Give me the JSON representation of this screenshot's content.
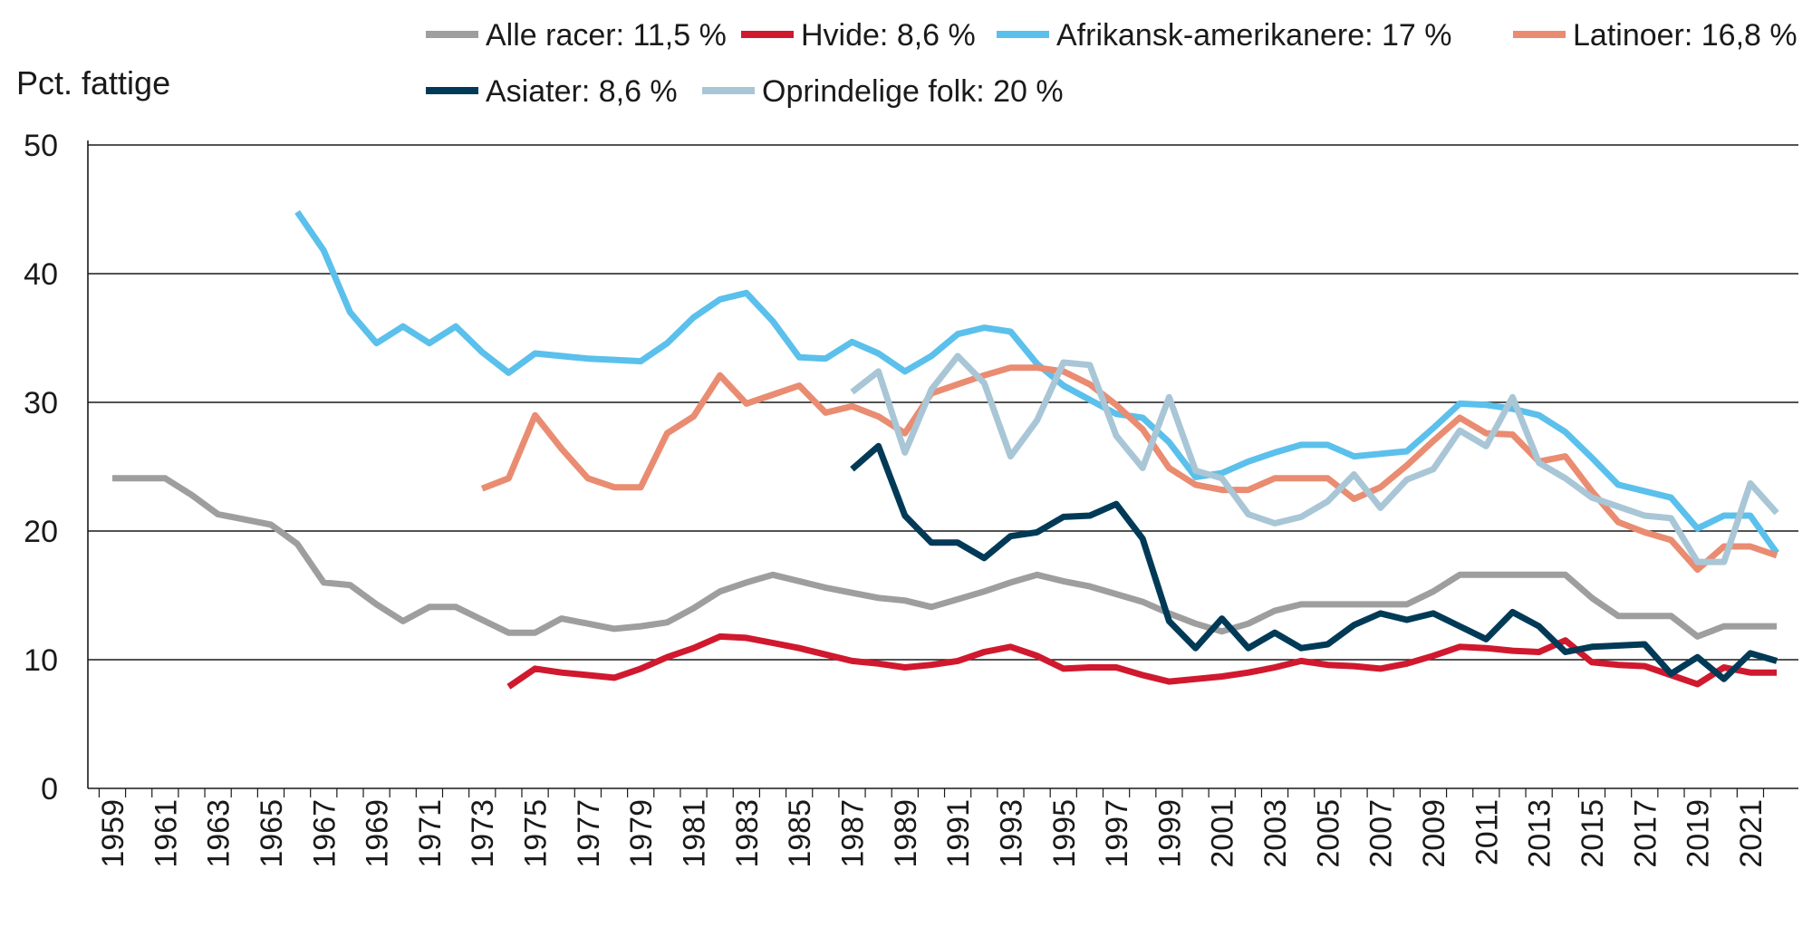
{
  "chart_data": {
    "type": "line",
    "title": "",
    "ylabel": "Pct. fattige",
    "xlabel": "",
    "ylim": [
      0,
      50
    ],
    "yticks": [
      0,
      10,
      20,
      30,
      40,
      50
    ],
    "xlim": [
      1959,
      2022
    ],
    "xticks": [
      "1959",
      "1961",
      "1963",
      "1965",
      "1967",
      "1969",
      "1971",
      "1973",
      "1975",
      "1977",
      "1979",
      "1981",
      "1983",
      "1985",
      "1987",
      "1989",
      "1991",
      "1993",
      "1995",
      "1997",
      "1999",
      "2001",
      "2003",
      "2005",
      "2007",
      "2009",
      "2011",
      "2013",
      "2015",
      "2017",
      "2019",
      "2021"
    ],
    "grid": "horizontal",
    "legend_position": "top",
    "series": [
      {
        "name": "Alle racer: 11,5 %",
        "color": "#9e9e9e",
        "x": [
          1959,
          1960,
          1961,
          1962,
          1963,
          1964,
          1965,
          1966,
          1967,
          1968,
          1969,
          1970,
          1971,
          1972,
          1973,
          1974,
          1975,
          1976,
          1977,
          1978,
          1979,
          1980,
          1981,
          1982,
          1983,
          1984,
          1985,
          1986,
          1987,
          1988,
          1989,
          1990,
          1991,
          1992,
          1993,
          1994,
          1995,
          1996,
          1997,
          1998,
          1999,
          2000,
          2001,
          2002,
          2003,
          2004,
          2005,
          2006,
          2007,
          2008,
          2009,
          2010,
          2011,
          2012,
          2013,
          2014,
          2015,
          2016,
          2017,
          2018,
          2019,
          2020,
          2021,
          2022
        ],
        "y": [
          24.1,
          24.1,
          24.1,
          22.8,
          21.3,
          20.9,
          20.5,
          19.0,
          16.0,
          15.8,
          14.3,
          13.0,
          14.1,
          14.1,
          13.1,
          12.1,
          12.1,
          13.2,
          12.8,
          12.4,
          12.6,
          12.9,
          14.0,
          15.3,
          16.0,
          16.6,
          16.1,
          15.6,
          15.2,
          14.8,
          14.6,
          14.1,
          14.7,
          15.3,
          16.0,
          16.6,
          16.1,
          15.7,
          15.1,
          14.5,
          13.6,
          12.8,
          12.2,
          12.8,
          13.8,
          14.3,
          14.3,
          14.3,
          14.3,
          14.3,
          15.3,
          16.6,
          16.6,
          16.6,
          16.6,
          16.6,
          14.8,
          13.4,
          13.4,
          13.4,
          11.8,
          12.6,
          12.6,
          12.6
        ]
      },
      {
        "name": "Hvide: 8,6 %",
        "color": "#d0192e",
        "x": [
          1974,
          1975,
          1976,
          1977,
          1978,
          1979,
          1980,
          1981,
          1982,
          1983,
          1984,
          1985,
          1986,
          1987,
          1988,
          1989,
          1990,
          1991,
          1992,
          1993,
          1994,
          1995,
          1996,
          1997,
          1998,
          1999,
          2000,
          2001,
          2002,
          2003,
          2004,
          2005,
          2006,
          2007,
          2008,
          2009,
          2010,
          2011,
          2012,
          2013,
          2014,
          2015,
          2016,
          2017,
          2018,
          2019,
          2020,
          2021,
          2022
        ],
        "y": [
          7.9,
          9.3,
          9.0,
          8.8,
          8.6,
          9.3,
          10.2,
          10.9,
          11.8,
          11.7,
          11.3,
          10.9,
          10.4,
          9.9,
          9.7,
          9.4,
          9.6,
          9.9,
          10.6,
          11.0,
          10.3,
          9.3,
          9.4,
          9.4,
          8.8,
          8.3,
          8.5,
          8.7,
          9.0,
          9.4,
          9.9,
          9.6,
          9.5,
          9.3,
          9.7,
          10.3,
          11.0,
          10.9,
          10.7,
          10.6,
          11.5,
          9.8,
          9.6,
          9.5,
          8.8,
          8.1,
          9.4,
          9.0,
          9.0
        ]
      },
      {
        "name": "Afrikansk-amerikanere: 17 %",
        "color": "#5bc0eb",
        "x": [
          1966,
          1967,
          1968,
          1969,
          1970,
          1971,
          1972,
          1973,
          1974,
          1975,
          1976,
          1977,
          1978,
          1979,
          1980,
          1981,
          1982,
          1983,
          1984,
          1985,
          1986,
          1987,
          1988,
          1989,
          1990,
          1991,
          1992,
          1993,
          1994,
          1995,
          1996,
          1997,
          1998,
          1999,
          2000,
          2001,
          2002,
          2003,
          2004,
          2005,
          2006,
          2007,
          2008,
          2009,
          2010,
          2011,
          2012,
          2013,
          2014,
          2015,
          2016,
          2017,
          2018,
          2019,
          2020,
          2021,
          2022
        ],
        "y": [
          44.8,
          41.8,
          37.0,
          34.6,
          35.9,
          34.6,
          35.9,
          33.9,
          32.3,
          33.8,
          33.6,
          33.4,
          33.3,
          33.2,
          34.6,
          36.6,
          38.0,
          38.5,
          36.3,
          33.5,
          33.4,
          34.7,
          33.8,
          32.4,
          33.6,
          35.3,
          35.8,
          35.5,
          33.0,
          31.3,
          30.2,
          29.1,
          28.8,
          26.9,
          24.2,
          24.5,
          25.4,
          26.1,
          26.7,
          26.7,
          25.8,
          26.0,
          26.2,
          28.0,
          29.9,
          29.8,
          29.5,
          29.0,
          27.7,
          25.7,
          23.6,
          23.1,
          22.6,
          20.2,
          21.2,
          21.2,
          18.3
        ]
      },
      {
        "name": "Latinoer: 16,8 %",
        "color": "#e98c72",
        "x": [
          1973,
          1974,
          1975,
          1976,
          1977,
          1978,
          1979,
          1980,
          1981,
          1982,
          1983,
          1984,
          1985,
          1986,
          1987,
          1988,
          1989,
          1990,
          1991,
          1992,
          1993,
          1994,
          1995,
          1996,
          1997,
          1998,
          1999,
          2000,
          2001,
          2002,
          2003,
          2004,
          2005,
          2006,
          2007,
          2008,
          2009,
          2010,
          2011,
          2012,
          2013,
          2014,
          2015,
          2016,
          2017,
          2018,
          2019,
          2020,
          2021,
          2022
        ],
        "y": [
          23.3,
          24.1,
          29.0,
          26.4,
          24.1,
          23.4,
          23.4,
          27.6,
          28.9,
          32.1,
          29.9,
          30.6,
          31.3,
          29.2,
          29.7,
          28.9,
          27.6,
          30.7,
          31.4,
          32.1,
          32.7,
          32.7,
          32.4,
          31.4,
          29.8,
          27.9,
          24.9,
          23.6,
          23.2,
          23.2,
          24.1,
          24.1,
          24.1,
          22.5,
          23.4,
          25.1,
          27.0,
          28.8,
          27.6,
          27.5,
          25.4,
          25.8,
          23.1,
          20.7,
          19.9,
          19.3,
          17.0,
          18.8,
          18.8,
          18.1
        ]
      },
      {
        "name": "Asiater: 8,6 %",
        "color": "#003a57",
        "x": [
          1987,
          1988,
          1989,
          1990,
          1991,
          1992,
          1993,
          1994,
          1995,
          1996,
          1997,
          1998,
          1999,
          2000,
          2001,
          2002,
          2003,
          2004,
          2005,
          2006,
          2007,
          2008,
          2009,
          2010,
          2011,
          2012,
          2013,
          2014,
          2015,
          2016,
          2017,
          2018,
          2019,
          2020,
          2021,
          2022
        ],
        "y": [
          24.8,
          26.6,
          21.2,
          19.1,
          19.1,
          17.9,
          19.6,
          19.9,
          21.1,
          21.2,
          22.1,
          19.4,
          13.0,
          10.9,
          13.2,
          10.9,
          12.1,
          10.9,
          11.2,
          12.7,
          13.6,
          13.1,
          13.6,
          12.6,
          11.6,
          13.7,
          12.6,
          10.6,
          11.0,
          11.1,
          11.2,
          8.9,
          10.2,
          8.5,
          10.5,
          9.9
        ]
      },
      {
        "name": "Oprindelige folk: 20 %",
        "color": "#a9c6d6",
        "x": [
          1987,
          1988,
          1989,
          1990,
          1991,
          1992,
          1993,
          1994,
          1995,
          1996,
          1997,
          1998,
          1999,
          2000,
          2001,
          2002,
          2003,
          2004,
          2005,
          2006,
          2007,
          2008,
          2009,
          2010,
          2011,
          2012,
          2013,
          2014,
          2015,
          2016,
          2017,
          2018,
          2019,
          2020,
          2021,
          2022
        ],
        "y": [
          30.8,
          32.4,
          26.1,
          31.0,
          33.6,
          31.5,
          25.8,
          28.6,
          33.1,
          32.9,
          27.4,
          24.9,
          30.4,
          24.7,
          24.1,
          21.3,
          20.6,
          21.1,
          22.3,
          24.4,
          21.8,
          24.0,
          24.8,
          27.8,
          26.6,
          30.4,
          25.3,
          24.1,
          22.6,
          21.9,
          21.2,
          21.0,
          17.6,
          17.6,
          23.7,
          21.4
        ]
      }
    ]
  }
}
